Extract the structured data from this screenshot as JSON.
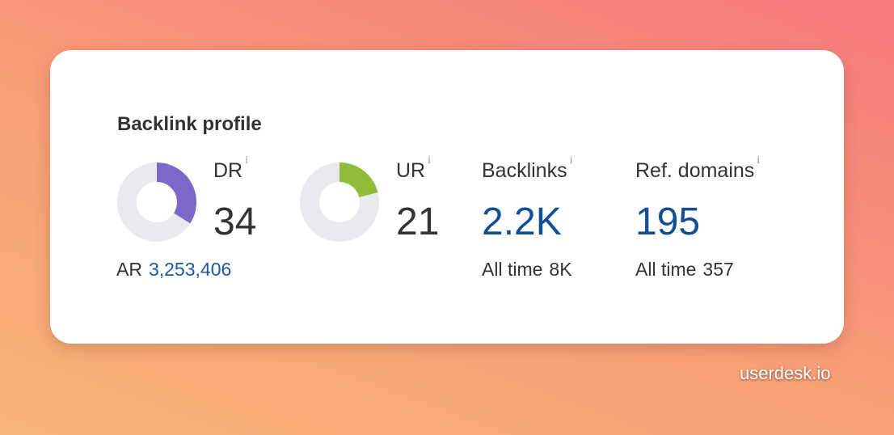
{
  "card": {
    "title": "Backlink profile"
  },
  "metrics": {
    "dr": {
      "label": "DR",
      "info": "i",
      "value": "34",
      "score": 34,
      "color": "#7b68c8",
      "sub_label": "AR",
      "sub_value": "3,253,406"
    },
    "ur": {
      "label": "UR",
      "info": "i",
      "value": "21",
      "score": 21,
      "color": "#8fbd3a"
    },
    "backlinks": {
      "label": "Backlinks",
      "info": "i",
      "value": "2.2K",
      "sub_label": "All time",
      "sub_value": "8K"
    },
    "ref_domains": {
      "label": "Ref. domains",
      "info": "i",
      "value": "195",
      "sub_label": "All time",
      "sub_value": "357"
    }
  },
  "colors": {
    "donut_track": "#e8eaed",
    "link": "#114f94"
  },
  "watermark": "userdesk.io"
}
